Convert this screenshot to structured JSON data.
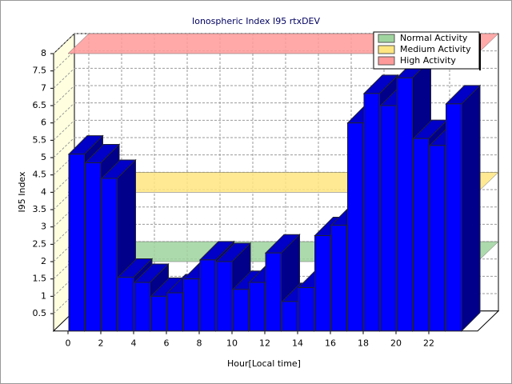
{
  "chart_data": {
    "type": "bar3d",
    "title": "Ionospheric Index I95 rtxDEV",
    "x_label": "Hour[Local time]",
    "y_label": "I95 Index",
    "x": [
      0,
      1,
      2,
      3,
      4,
      5,
      6,
      7,
      8,
      9,
      10,
      11,
      12,
      13,
      14,
      15,
      16,
      17,
      18,
      19,
      20,
      21,
      22,
      23
    ],
    "values": [
      5.1,
      4.85,
      4.4,
      1.55,
      1.4,
      1.0,
      1.1,
      1.5,
      2.05,
      2.0,
      1.2,
      1.4,
      2.25,
      0.85,
      1.25,
      2.75,
      3.05,
      6.0,
      6.85,
      6.5,
      7.3,
      5.55,
      5.35,
      6.55
    ],
    "color": "#0000ff",
    "xlim": [
      0,
      24
    ],
    "xticks": [
      0,
      2,
      4,
      6,
      8,
      10,
      12,
      14,
      16,
      18,
      20,
      22
    ],
    "ylim": [
      0,
      8
    ],
    "yticks": [
      0.5,
      1,
      1.5,
      2,
      2.5,
      3,
      3.5,
      4,
      4.5,
      5,
      5.5,
      6,
      6.5,
      7,
      7.5,
      8
    ],
    "grid": true,
    "bands": [
      {
        "name": "Normal Activity",
        "color": "#9fd49f",
        "value": 2
      },
      {
        "name": "Medium Activity",
        "color": "#ffe680",
        "value": 4
      },
      {
        "name": "High Activity",
        "color": "#ff9a9a",
        "value": 8
      }
    ],
    "legend": "upper right"
  }
}
